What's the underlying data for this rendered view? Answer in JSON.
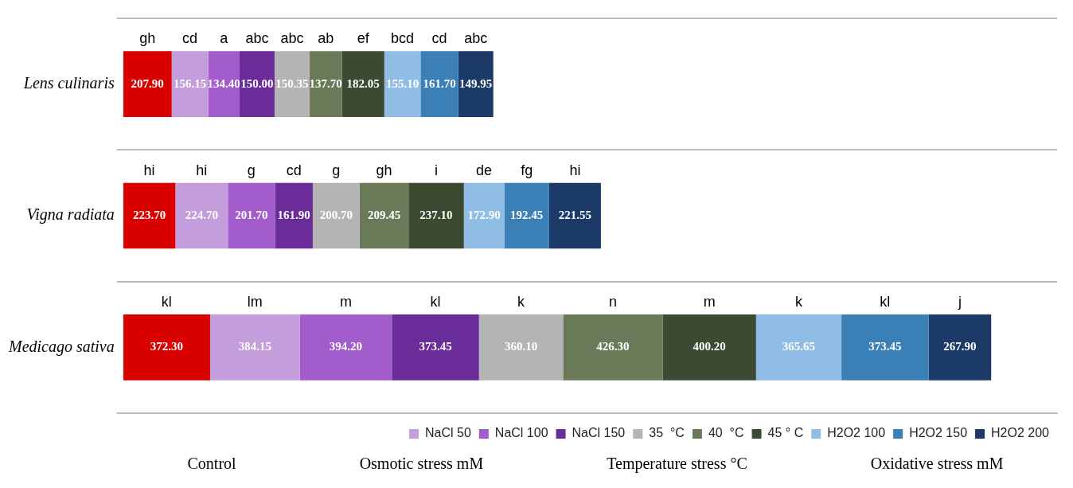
{
  "chart_data": {
    "type": "bar",
    "orientation": "horizontal",
    "stacked": true,
    "grid": "y",
    "legend": "bottom",
    "tick_labels": "y",
    "categories": [
      "Lens culinaris",
      "Vigna radiata",
      "Medicago sativa"
    ],
    "series": [
      {
        "color": "#d90000",
        "values": [
          207.9,
          223.7,
          372.3
        ],
        "value_labels": [
          "207.90",
          "223.70",
          "372.30"
        ]
      },
      {
        "name": "NaCl 50",
        "color": "#c49ddc",
        "values": [
          156.15,
          224.7,
          384.15
        ],
        "value_labels": [
          "156.15",
          "224.70",
          "384.15"
        ]
      },
      {
        "name": "NaCl 100",
        "color": "#a25ccc",
        "values": [
          134.4,
          201.7,
          394.2
        ],
        "value_labels": [
          "134.40",
          "201.70",
          "394.20"
        ]
      },
      {
        "name": "NaCl 150",
        "color": "#6a2c98",
        "values": [
          150.0,
          161.9,
          373.45
        ],
        "value_labels": [
          "150.00",
          "161.90",
          "373.45"
        ]
      },
      {
        "name": "35  °C",
        "color": "#b4b4b4",
        "values": [
          150.35,
          200.7,
          360.1
        ],
        "value_labels": [
          "150.35",
          "200.70",
          "360.10"
        ]
      },
      {
        "name": "40  °C",
        "color": "#6a7a58",
        "values": [
          137.7,
          209.45,
          426.3
        ],
        "value_labels": [
          "137.70",
          "209.45",
          "426.30"
        ]
      },
      {
        "name": "45 ° C",
        "color": "#3c4a32",
        "values": [
          182.05,
          237.1,
          400.2
        ],
        "value_labels": [
          "182.05",
          "237.10",
          "400.20"
        ]
      },
      {
        "name": "H2O2 100",
        "color": "#8fbde6",
        "values": [
          155.1,
          172.9,
          365.65
        ],
        "value_labels": [
          "155.10",
          "172.90",
          "365.65"
        ]
      },
      {
        "name": "H2O2 150",
        "color": "#3a7fb6",
        "values": [
          161.7,
          192.45,
          373.45
        ],
        "value_labels": [
          "161.70",
          "192.45",
          "373.45"
        ]
      },
      {
        "name": "H2O2 200",
        "color": "#1b3a68",
        "values": [
          149.95,
          221.55,
          267.9
        ],
        "value_labels": [
          "149.95",
          "221.55",
          "267.90"
        ]
      }
    ],
    "annotations": [
      "gh",
      "cd",
      "a",
      "abc",
      "abc",
      "ab",
      "ef",
      "bcd",
      "cd",
      "abc",
      "hi",
      "hi",
      "g",
      "cd",
      "g",
      "gh",
      "i",
      "de",
      "fg",
      "hi",
      "kl",
      "lm",
      "m",
      "kl",
      "k",
      "n",
      "m",
      "k",
      "kl",
      "j",
      "Control",
      "Osmotic stress mM",
      "Temperature stress °C",
      "Oxidative stress mM"
    ]
  }
}
